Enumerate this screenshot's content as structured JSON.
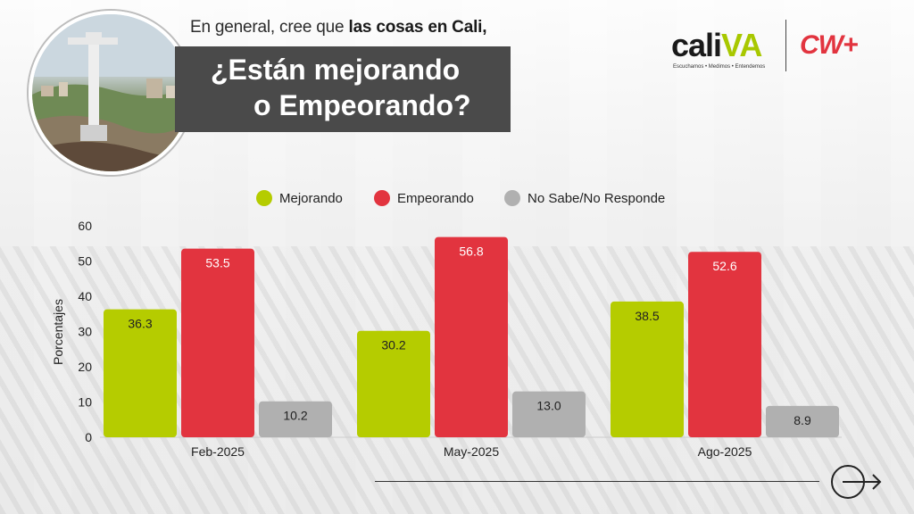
{
  "header": {
    "subtitle_prefix": "En general, cree que ",
    "subtitle_bold": "las cosas en Cali,",
    "title_line1": "¿Están mejorando",
    "title_line2": "o Empeorando?"
  },
  "logos": {
    "cali_text": "cali",
    "va_text": "VA",
    "tagline": "Escuchamos • Medimos • Entendemos",
    "cw_text": "CW+"
  },
  "colors": {
    "mejorando": "#b5cc00",
    "empeorando": "#e2343f",
    "nosabe": "#b0b0b0",
    "title_box": "#4a4a4a"
  },
  "icons": {
    "next": "arrow-right-circle-icon",
    "photo": "cristo-rey-statue-photo"
  },
  "chart_data": {
    "type": "bar",
    "categories": [
      "Feb-2025",
      "May-2025",
      "Ago-2025"
    ],
    "series": [
      {
        "name": "Mejorando",
        "values": [
          36.3,
          30.2,
          38.5
        ],
        "color": "#b5cc00"
      },
      {
        "name": "Empeorando",
        "values": [
          53.5,
          56.8,
          52.6
        ],
        "color": "#e2343f"
      },
      {
        "name": "No Sabe/No Responde",
        "values": [
          10.2,
          13.0,
          8.9
        ],
        "color": "#b0b0b0"
      }
    ],
    "ylabel": "Porcentajes",
    "ylim": [
      0,
      60
    ],
    "yticks": [
      0,
      10,
      20,
      30,
      40,
      50,
      60
    ],
    "grid": false,
    "legend": "top"
  }
}
